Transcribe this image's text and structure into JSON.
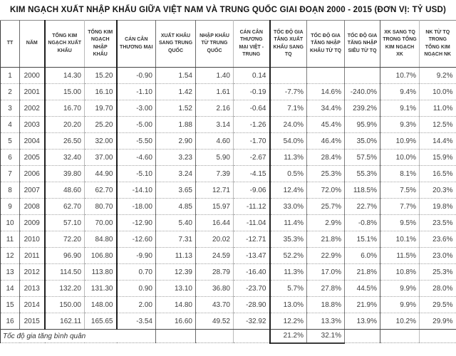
{
  "title": "KIM NGẠCH XUẤT NHẬP KHẨU GIỮA VIỆT NAM VÀ TRUNG QUỐC GIAI ĐOẠN 2000 - 2015 (ĐƠN VỊ: TỶ USD)",
  "colors": {
    "text": "#3d3d3d",
    "title_text": "#141414",
    "grid_dark": "#1f1f1f",
    "grid_light": "#bababa",
    "row_divider": "#a3a3a3",
    "background": "#ffffff"
  },
  "table": {
    "columns": [
      {
        "key": "tt",
        "label": "TT"
      },
      {
        "key": "nam",
        "label": "NĂM"
      },
      {
        "key": "tong_kim_ngach_xk",
        "label": "TỔNG KIM NGẠCH XUẤT KHẨU"
      },
      {
        "key": "tong_kim_ngach_nk",
        "label": "TỔNG KIM NGẠCH NHẬP KHẨU"
      },
      {
        "key": "can_can_thuong_mai",
        "label": "CÁN CÂN THƯƠNG MẠI"
      },
      {
        "key": "xk_sang_trung_quoc",
        "label": "XUẤT KHẨU SANG TRUNG QUỐC"
      },
      {
        "key": "nk_tu_trung_quoc",
        "label": "NHẬP KHẨU TỪ TRUNG QUỐC"
      },
      {
        "key": "can_can_viet_trung",
        "label": "CÁN CÂN THƯƠNG MẠI VIỆT - TRUNG"
      },
      {
        "key": "toc_do_gia_tang_xk_sang_tq",
        "label": "TỐC ĐỘ GIA TĂNG XUẤT KHẨU SANG TQ"
      },
      {
        "key": "toc_do_gia_tang_nk_tu_tq",
        "label": "TỐC ĐỘ GIA TĂNG NHẬP KHẨU TỪ TQ"
      },
      {
        "key": "toc_do_gia_tang_nhap_sieu_tu_tq",
        "label": "TỐC ĐỘ GIA TĂNG NHẬP SIÊU TỪ TQ"
      },
      {
        "key": "xk_sang_tq_trong_tong_kim_ngach_xk",
        "label": "XK SANG TQ TRONG TỔNG KIM NGẠCH XK"
      },
      {
        "key": "nk_tu_tq_trong_tong_kim_ngach_nk",
        "label": "NK TỪ TQ TRONG TỔNG KIM NGẠCH NK"
      }
    ],
    "rows": [
      [
        "1",
        "2000",
        "14.30",
        "15.20",
        "-0.90",
        "1.54",
        "1.40",
        "0.14",
        "",
        "",
        "",
        "10.7%",
        "9.2%"
      ],
      [
        "2",
        "2001",
        "15.00",
        "16.10",
        "-1.10",
        "1.42",
        "1.61",
        "-0.19",
        "-7.7%",
        "14.6%",
        "-240.0%",
        "9.4%",
        "10.0%"
      ],
      [
        "3",
        "2002",
        "16.70",
        "19.70",
        "-3.00",
        "1.52",
        "2.16",
        "-0.64",
        "7.1%",
        "34.4%",
        "239.2%",
        "9.1%",
        "11.0%"
      ],
      [
        "4",
        "2003",
        "20.20",
        "25.20",
        "-5.00",
        "1.88",
        "3.14",
        "-1.26",
        "24.0%",
        "45.4%",
        "95.9%",
        "9.3%",
        "12.5%"
      ],
      [
        "5",
        "2004",
        "26.50",
        "32.00",
        "-5.50",
        "2.90",
        "4.60",
        "-1.70",
        "54.0%",
        "46.4%",
        "35.0%",
        "10.9%",
        "14.4%"
      ],
      [
        "6",
        "2005",
        "32.40",
        "37.00",
        "-4.60",
        "3.23",
        "5.90",
        "-2.67",
        "11.3%",
        "28.4%",
        "57.5%",
        "10.0%",
        "15.9%"
      ],
      [
        "7",
        "2006",
        "39.80",
        "44.90",
        "-5.10",
        "3.24",
        "7.39",
        "-4.15",
        "0.5%",
        "25.3%",
        "55.3%",
        "8.1%",
        "16.5%"
      ],
      [
        "8",
        "2007",
        "48.60",
        "62.70",
        "-14.10",
        "3.65",
        "12.71",
        "-9.06",
        "12.4%",
        "72.0%",
        "118.5%",
        "7.5%",
        "20.3%"
      ],
      [
        "9",
        "2008",
        "62.70",
        "80.70",
        "-18.00",
        "4.85",
        "15.97",
        "-11.12",
        "33.0%",
        "25.7%",
        "22.7%",
        "7.7%",
        "19.8%"
      ],
      [
        "10",
        "2009",
        "57.10",
        "70.00",
        "-12.90",
        "5.40",
        "16.44",
        "-11.04",
        "11.4%",
        "2.9%",
        "-0.8%",
        "9.5%",
        "23.5%"
      ],
      [
        "11",
        "2010",
        "72.20",
        "84.80",
        "-12.60",
        "7.31",
        "20.02",
        "-12.71",
        "35.3%",
        "21.8%",
        "15.1%",
        "10.1%",
        "23.6%"
      ],
      [
        "12",
        "2011",
        "96.90",
        "106.80",
        "-9.90",
        "11.13",
        "24.59",
        "-13.47",
        "52.2%",
        "22.9%",
        "6.0%",
        "11.5%",
        "23.0%"
      ],
      [
        "13",
        "2012",
        "114.50",
        "113.80",
        "0.70",
        "12.39",
        "28.79",
        "-16.40",
        "11.3%",
        "17.0%",
        "21.8%",
        "10.8%",
        "25.3%"
      ],
      [
        "14",
        "2013",
        "132.20",
        "131.30",
        "0.90",
        "13.10",
        "36.80",
        "-23.70",
        "5.7%",
        "27.8%",
        "44.5%",
        "9.9%",
        "28.0%"
      ],
      [
        "15",
        "2014",
        "150.00",
        "148.00",
        "2.00",
        "14.80",
        "43.70",
        "-28.90",
        "13.0%",
        "18.8%",
        "21.9%",
        "9.9%",
        "29.5%"
      ],
      [
        "16",
        "2015",
        "162.11",
        "165.65",
        "-3.54",
        "16.60",
        "49.52",
        "-32.92",
        "12.2%",
        "13.3%",
        "13.9%",
        "10.2%",
        "29.9%"
      ]
    ],
    "footer": {
      "label": "Tốc độ gia tăng bình quân",
      "avg_toc_do_gia_tang_xk_sang_tq": "21.2%",
      "avg_toc_do_gia_tang_nk_tu_tq": "32.1%"
    }
  }
}
